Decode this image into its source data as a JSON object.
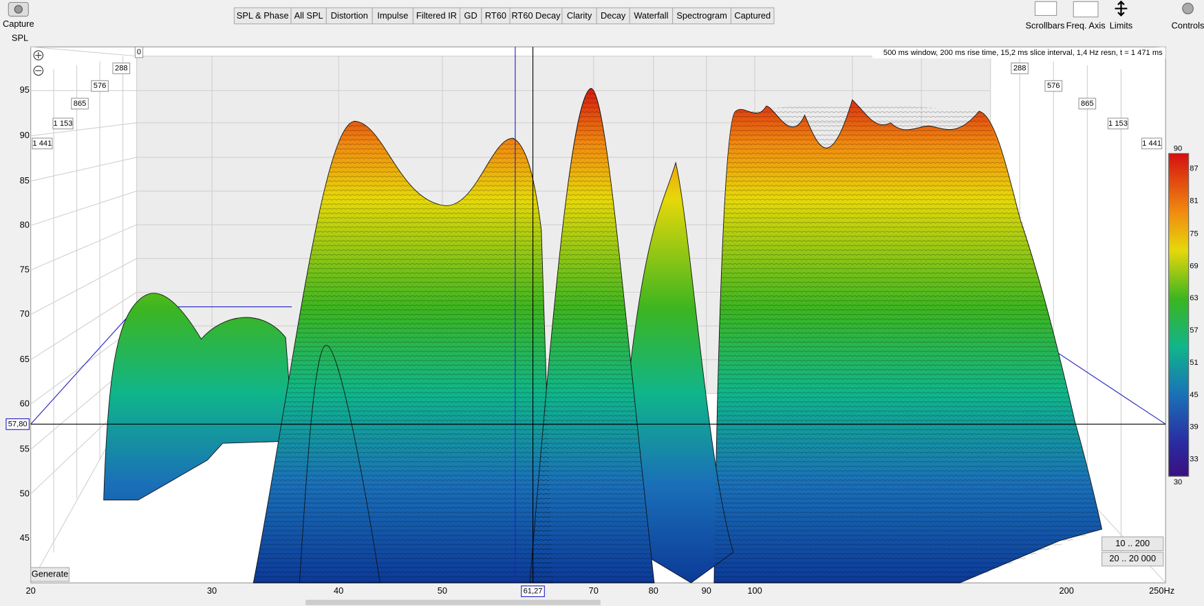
{
  "toolbar": {
    "capture": "Capture",
    "graph_label": "SPL",
    "tabs": [
      "SPL & Phase",
      "All SPL",
      "Distortion",
      "Impulse",
      "Filtered IR",
      "GD",
      "RT60",
      "RT60 Decay",
      "Clarity",
      "Decay",
      "Waterfall",
      "Spectrogram",
      "Captured"
    ],
    "selected_tab": "Waterfall",
    "right_buttons": [
      "Scrollbars",
      "Freq. Axis",
      "Limits",
      "Controls"
    ]
  },
  "plot": {
    "info": "500 ms window, 200 ms rise time, 15,2 ms slice interval, 1,4 Hz resn, t = 1 471 ms",
    "y_ticks": [
      95,
      90,
      85,
      80,
      75,
      70,
      65,
      60,
      55,
      50,
      45
    ],
    "x_ticks": [
      20,
      30,
      40,
      50,
      70,
      80,
      90,
      100,
      200,
      "250Hz"
    ],
    "cursor_x": "61,27",
    "cursor_y": "57,80",
    "time_origin": 0,
    "time_labels_left": [
      288,
      576,
      865,
      "1 153",
      "1 441"
    ],
    "time_labels_right": [
      288,
      576,
      865,
      "1 153",
      "1 441"
    ],
    "color_scale": {
      "max": 90,
      "labels": [
        87,
        81,
        75,
        69,
        63,
        57,
        51,
        45,
        39,
        33
      ],
      "min": 30
    },
    "buttons": {
      "generate": "Generate",
      "range_low": "10 .. 200",
      "range_full": "20 .. 20 000"
    }
  }
}
